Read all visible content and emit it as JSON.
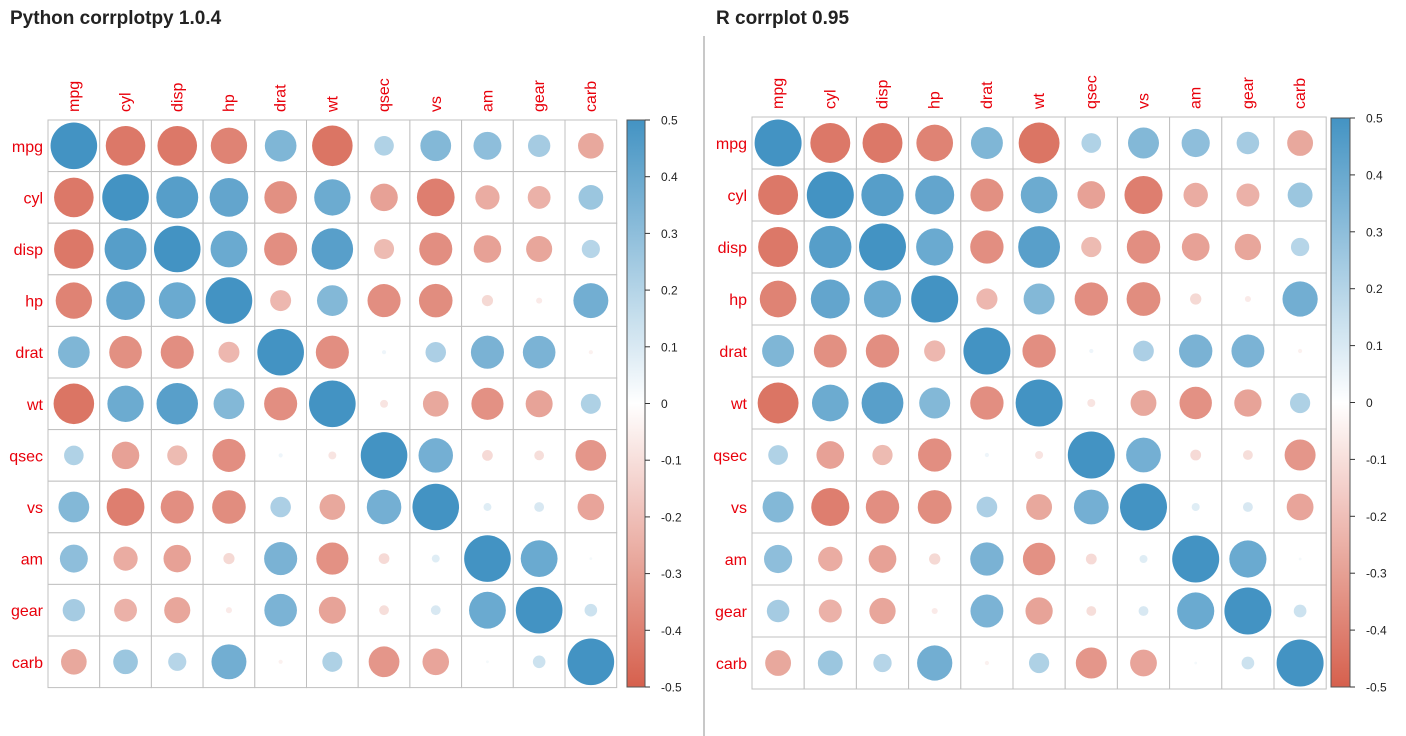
{
  "chart_data": [
    {
      "type": "heatmap",
      "title": "Python corrplotpy 1.0.4",
      "variables": [
        "mpg",
        "cyl",
        "disp",
        "hp",
        "drat",
        "wt",
        "qsec",
        "vs",
        "am",
        "gear",
        "carb"
      ],
      "matrix": [
        [
          1.0,
          -0.85,
          -0.85,
          -0.78,
          0.68,
          -0.87,
          0.42,
          0.66,
          0.6,
          0.48,
          -0.55
        ],
        [
          -0.85,
          1.0,
          0.9,
          0.83,
          -0.7,
          0.78,
          -0.59,
          -0.81,
          -0.52,
          -0.49,
          0.53
        ],
        [
          -0.85,
          0.9,
          1.0,
          0.79,
          -0.71,
          0.89,
          -0.43,
          -0.71,
          -0.59,
          -0.56,
          0.39
        ],
        [
          -0.78,
          0.83,
          0.79,
          1.0,
          -0.45,
          0.66,
          -0.71,
          -0.72,
          -0.24,
          -0.13,
          0.75
        ],
        [
          0.68,
          -0.7,
          -0.71,
          -0.45,
          1.0,
          -0.71,
          0.09,
          0.44,
          0.71,
          0.7,
          -0.09
        ],
        [
          -0.87,
          0.78,
          0.89,
          0.66,
          -0.71,
          1.0,
          -0.17,
          -0.55,
          -0.69,
          -0.58,
          0.43
        ],
        [
          0.42,
          -0.59,
          -0.43,
          -0.71,
          0.09,
          -0.17,
          1.0,
          0.74,
          -0.23,
          -0.21,
          -0.66
        ],
        [
          0.66,
          -0.81,
          -0.71,
          -0.72,
          0.44,
          -0.55,
          0.74,
          1.0,
          0.17,
          0.21,
          -0.57
        ],
        [
          0.6,
          -0.52,
          -0.59,
          -0.24,
          0.71,
          -0.69,
          -0.23,
          0.17,
          1.0,
          0.79,
          0.06
        ],
        [
          0.48,
          -0.49,
          -0.56,
          -0.13,
          0.7,
          -0.58,
          -0.21,
          0.21,
          0.79,
          1.0,
          0.27
        ],
        [
          -0.55,
          0.53,
          0.39,
          0.75,
          -0.09,
          0.43,
          -0.66,
          -0.57,
          0.06,
          0.27,
          1.0
        ]
      ],
      "colorbar": {
        "min": -0.5,
        "max": 0.5,
        "ticks": [
          "0.5",
          "0.4",
          "0.3",
          "0.2",
          "0.1",
          "0",
          "-0.1",
          "-0.2",
          "-0.3",
          "-0.4",
          "-0.5"
        ]
      },
      "colors": {
        "positive": "#4393c3",
        "negative": "#d6604d",
        "label": "#e8000b",
        "grid": "#c0c0c0"
      }
    },
    {
      "type": "heatmap",
      "title": "R corrplot 0.95",
      "variables": [
        "mpg",
        "cyl",
        "disp",
        "hp",
        "drat",
        "wt",
        "qsec",
        "vs",
        "am",
        "gear",
        "carb"
      ],
      "matrix": [
        [
          1.0,
          -0.85,
          -0.85,
          -0.78,
          0.68,
          -0.87,
          0.42,
          0.66,
          0.6,
          0.48,
          -0.55
        ],
        [
          -0.85,
          1.0,
          0.9,
          0.83,
          -0.7,
          0.78,
          -0.59,
          -0.81,
          -0.52,
          -0.49,
          0.53
        ],
        [
          -0.85,
          0.9,
          1.0,
          0.79,
          -0.71,
          0.89,
          -0.43,
          -0.71,
          -0.59,
          -0.56,
          0.39
        ],
        [
          -0.78,
          0.83,
          0.79,
          1.0,
          -0.45,
          0.66,
          -0.71,
          -0.72,
          -0.24,
          -0.13,
          0.75
        ],
        [
          0.68,
          -0.7,
          -0.71,
          -0.45,
          1.0,
          -0.71,
          0.09,
          0.44,
          0.71,
          0.7,
          -0.09
        ],
        [
          -0.87,
          0.78,
          0.89,
          0.66,
          -0.71,
          1.0,
          -0.17,
          -0.55,
          -0.69,
          -0.58,
          0.43
        ],
        [
          0.42,
          -0.59,
          -0.43,
          -0.71,
          0.09,
          -0.17,
          1.0,
          0.74,
          -0.23,
          -0.21,
          -0.66
        ],
        [
          0.66,
          -0.81,
          -0.71,
          -0.72,
          0.44,
          -0.55,
          0.74,
          1.0,
          0.17,
          0.21,
          -0.57
        ],
        [
          0.6,
          -0.52,
          -0.59,
          -0.24,
          0.71,
          -0.69,
          -0.23,
          0.17,
          1.0,
          0.79,
          0.06
        ],
        [
          0.48,
          -0.49,
          -0.56,
          -0.13,
          0.7,
          -0.58,
          -0.21,
          0.21,
          0.79,
          1.0,
          0.27
        ],
        [
          -0.55,
          0.53,
          0.39,
          0.75,
          -0.09,
          0.43,
          -0.66,
          -0.57,
          0.06,
          0.27,
          1.0
        ]
      ],
      "colorbar": {
        "min": -0.5,
        "max": 0.5,
        "ticks": [
          "0.5",
          "0.4",
          "0.3",
          "0.2",
          "0.1",
          "0",
          "-0.1",
          "-0.2",
          "-0.3",
          "-0.4",
          "-0.5"
        ]
      },
      "colors": {
        "positive": "#4393c3",
        "negative": "#d6604d",
        "label": "#e8000b",
        "grid": "#c0c0c0"
      }
    }
  ]
}
